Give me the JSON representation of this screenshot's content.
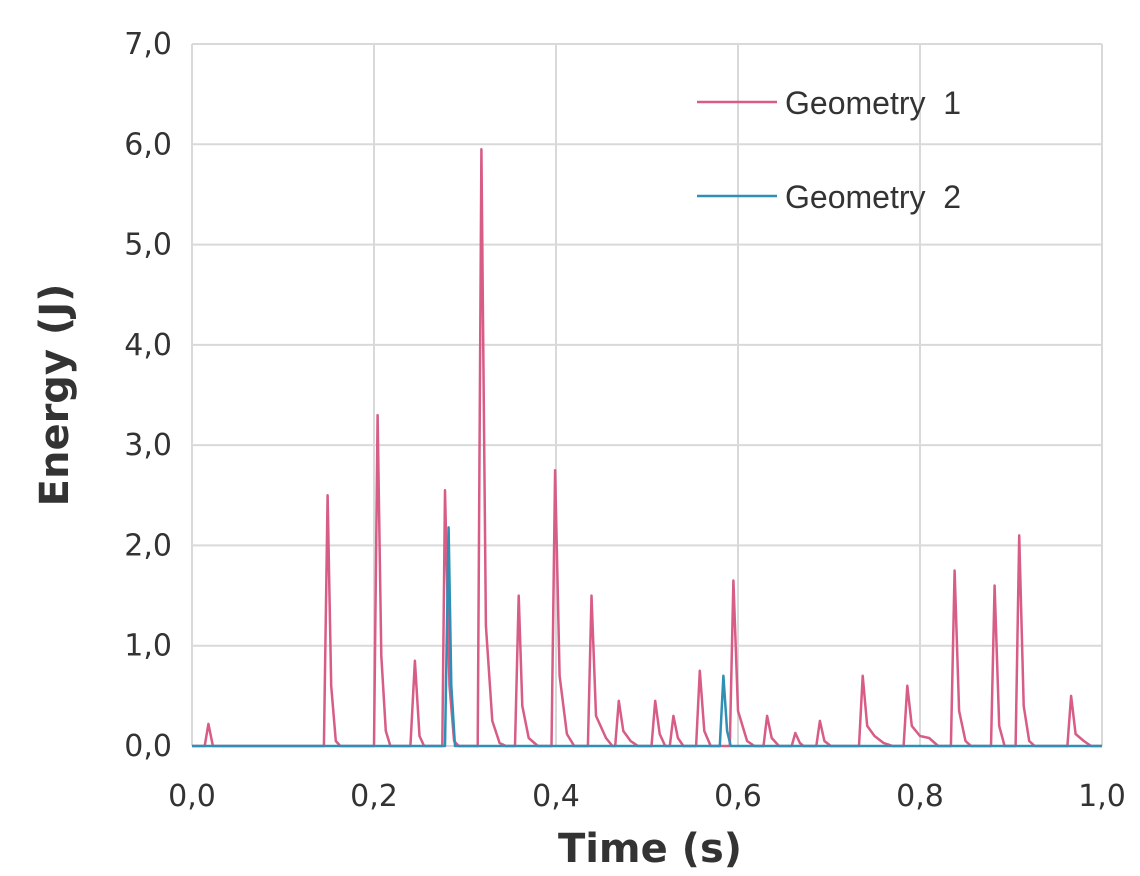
{
  "chart_data": {
    "type": "line",
    "xlabel": "Time  (s)",
    "ylabel": "Energy (J)",
    "xlim": [
      0,
      1
    ],
    "ylim": [
      0,
      7
    ],
    "x_ticks": [
      0,
      0.2,
      0.4,
      0.6,
      0.8,
      1.0
    ],
    "x_tick_labels": [
      "0,0",
      "0,2",
      "0,4",
      "0,6",
      "0,8",
      "1,0"
    ],
    "y_ticks": [
      0,
      1,
      2,
      3,
      4,
      5,
      6,
      7
    ],
    "y_tick_labels": [
      "0,0",
      "1,0",
      "2,0",
      "3,0",
      "4,0",
      "5,0",
      "6,0",
      "7,0"
    ],
    "grid": true,
    "legend_position": "top-right",
    "series": [
      {
        "name": "Geometry  1",
        "color": "#d75c86",
        "points": [
          [
            0,
            0
          ],
          [
            0.014,
            0
          ],
          [
            0.018,
            0.22
          ],
          [
            0.023,
            0
          ],
          [
            0.145,
            0
          ],
          [
            0.149,
            2.5
          ],
          [
            0.153,
            0.6
          ],
          [
            0.158,
            0.05
          ],
          [
            0.163,
            0
          ],
          [
            0.2,
            0
          ],
          [
            0.204,
            3.3
          ],
          [
            0.208,
            0.9
          ],
          [
            0.213,
            0.15
          ],
          [
            0.218,
            0
          ],
          [
            0.24,
            0
          ],
          [
            0.245,
            0.85
          ],
          [
            0.25,
            0.1
          ],
          [
            0.255,
            0
          ],
          [
            0.275,
            0
          ],
          [
            0.278,
            2.55
          ],
          [
            0.283,
            0.6
          ],
          [
            0.288,
            0.05
          ],
          [
            0.293,
            0
          ],
          [
            0.314,
            0
          ],
          [
            0.318,
            5.95
          ],
          [
            0.323,
            1.2
          ],
          [
            0.33,
            0.25
          ],
          [
            0.338,
            0.03
          ],
          [
            0.345,
            0
          ],
          [
            0.355,
            0
          ],
          [
            0.359,
            1.5
          ],
          [
            0.363,
            0.4
          ],
          [
            0.37,
            0.08
          ],
          [
            0.38,
            0
          ],
          [
            0.395,
            0
          ],
          [
            0.399,
            2.75
          ],
          [
            0.404,
            0.7
          ],
          [
            0.412,
            0.12
          ],
          [
            0.42,
            0
          ],
          [
            0.435,
            0
          ],
          [
            0.439,
            1.5
          ],
          [
            0.444,
            0.3
          ],
          [
            0.455,
            0.08
          ],
          [
            0.462,
            0
          ],
          [
            0.465,
            0
          ],
          [
            0.469,
            0.45
          ],
          [
            0.474,
            0.15
          ],
          [
            0.482,
            0.05
          ],
          [
            0.49,
            0
          ],
          [
            0.505,
            0
          ],
          [
            0.509,
            0.45
          ],
          [
            0.514,
            0.12
          ],
          [
            0.52,
            0
          ],
          [
            0.525,
            0
          ],
          [
            0.529,
            0.3
          ],
          [
            0.534,
            0.08
          ],
          [
            0.54,
            0
          ],
          [
            0.554,
            0
          ],
          [
            0.558,
            0.75
          ],
          [
            0.563,
            0.15
          ],
          [
            0.57,
            0
          ],
          [
            0.591,
            0
          ],
          [
            0.595,
            1.65
          ],
          [
            0.6,
            0.35
          ],
          [
            0.61,
            0.05
          ],
          [
            0.618,
            0
          ],
          [
            0.628,
            0
          ],
          [
            0.632,
            0.3
          ],
          [
            0.637,
            0.08
          ],
          [
            0.645,
            0
          ],
          [
            0.659,
            0
          ],
          [
            0.663,
            0.13
          ],
          [
            0.668,
            0.03
          ],
          [
            0.672,
            0
          ],
          [
            0.686,
            0
          ],
          [
            0.69,
            0.25
          ],
          [
            0.695,
            0.05
          ],
          [
            0.702,
            0
          ],
          [
            0.733,
            0
          ],
          [
            0.737,
            0.7
          ],
          [
            0.742,
            0.2
          ],
          [
            0.75,
            0.1
          ],
          [
            0.76,
            0.03
          ],
          [
            0.77,
            0
          ],
          [
            0.782,
            0
          ],
          [
            0.786,
            0.6
          ],
          [
            0.791,
            0.2
          ],
          [
            0.8,
            0.1
          ],
          [
            0.81,
            0.08
          ],
          [
            0.82,
            0
          ],
          [
            0.834,
            0
          ],
          [
            0.838,
            1.75
          ],
          [
            0.843,
            0.35
          ],
          [
            0.85,
            0.05
          ],
          [
            0.856,
            0
          ],
          [
            0.878,
            0
          ],
          [
            0.882,
            1.6
          ],
          [
            0.887,
            0.2
          ],
          [
            0.893,
            0
          ],
          [
            0.905,
            0
          ],
          [
            0.909,
            2.1
          ],
          [
            0.914,
            0.4
          ],
          [
            0.92,
            0.05
          ],
          [
            0.926,
            0
          ],
          [
            0.962,
            0
          ],
          [
            0.966,
            0.5
          ],
          [
            0.971,
            0.12
          ],
          [
            0.98,
            0.05
          ],
          [
            0.988,
            0
          ],
          [
            1.0,
            0
          ]
        ]
      },
      {
        "name": "Geometry  2",
        "color": "#2f8fb5",
        "points": [
          [
            0,
            0
          ],
          [
            0.278,
            0
          ],
          [
            0.282,
            2.18
          ],
          [
            0.285,
            0.6
          ],
          [
            0.289,
            0
          ],
          [
            0.58,
            0
          ],
          [
            0.584,
            0.7
          ],
          [
            0.588,
            0.15
          ],
          [
            0.592,
            0
          ],
          [
            1.0,
            0
          ]
        ]
      }
    ]
  }
}
